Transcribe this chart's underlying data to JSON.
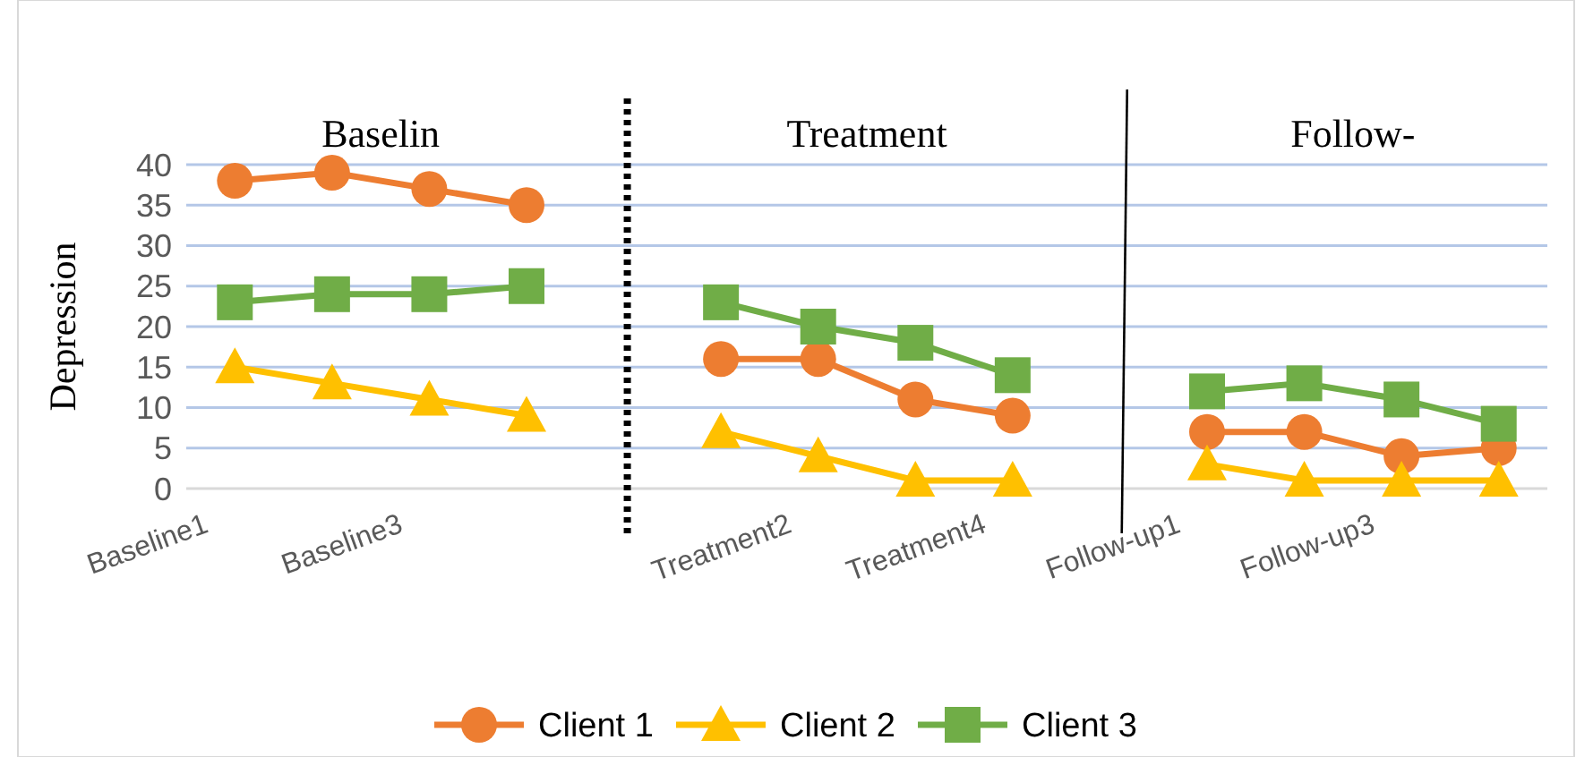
{
  "chart_data": {
    "type": "line",
    "ylabel": "Depression",
    "categories": [
      "Baseline1",
      null,
      "Baseline3",
      null,
      null,
      null,
      "Treatment2",
      null,
      "Treatment4",
      null,
      "Follow-up1",
      null,
      "Follow-up3",
      null
    ],
    "series": [
      {
        "name": "Client 1",
        "color": "#ed7d31",
        "marker": "circle",
        "values": [
          38,
          39,
          37,
          35,
          null,
          16,
          16,
          11,
          9,
          null,
          7,
          7,
          4,
          5
        ]
      },
      {
        "name": "Client 2",
        "color": "#ffc000",
        "marker": "triangle",
        "values": [
          15,
          13,
          11,
          9,
          null,
          7,
          4,
          1,
          1,
          null,
          3,
          1,
          1,
          1
        ]
      },
      {
        "name": "Client 3",
        "color": "#70ad47",
        "marker": "square",
        "values": [
          23,
          24,
          24,
          25,
          null,
          23,
          20,
          18,
          14,
          null,
          12,
          13,
          11,
          8
        ]
      }
    ],
    "annotations": [
      "Baselin",
      "Treatment",
      "Follow-"
    ],
    "ylim": [
      0,
      40
    ],
    "yticks": [
      0,
      5,
      10,
      15,
      20,
      25,
      30,
      35,
      40
    ],
    "grid": "y",
    "legend": "bottom"
  }
}
